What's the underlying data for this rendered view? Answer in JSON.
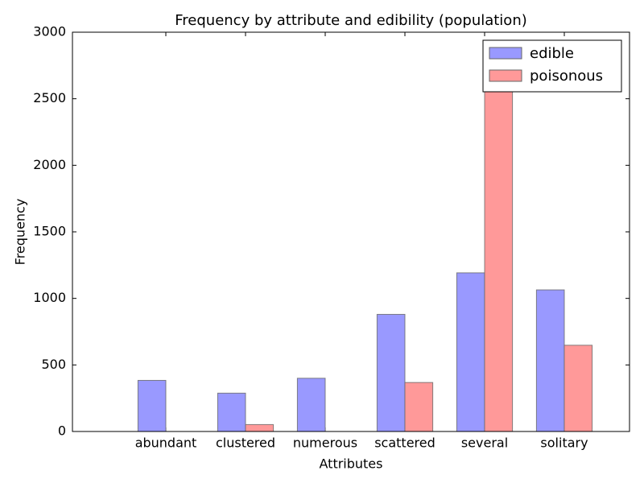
{
  "chart_data": {
    "type": "bar",
    "title": "Frequency by attribute and edibility (population)",
    "x_label": "Attributes",
    "y_label": "Frequency",
    "categories": [
      "abundant",
      "clustered",
      "numerous",
      "scattered",
      "several",
      "solitary"
    ],
    "series": [
      {
        "name": "edible",
        "color": "#9999ff",
        "values": [
          384,
          288,
          400,
          880,
          1192,
          1064
        ]
      },
      {
        "name": "poisonous",
        "color": "#ff9999",
        "values": [
          0,
          52,
          0,
          368,
          2848,
          648
        ]
      }
    ],
    "ylim": [
      0,
      3000
    ],
    "yticks": [
      0,
      500,
      1000,
      1500,
      2000,
      2500,
      3000
    ],
    "legend": "upper right"
  }
}
